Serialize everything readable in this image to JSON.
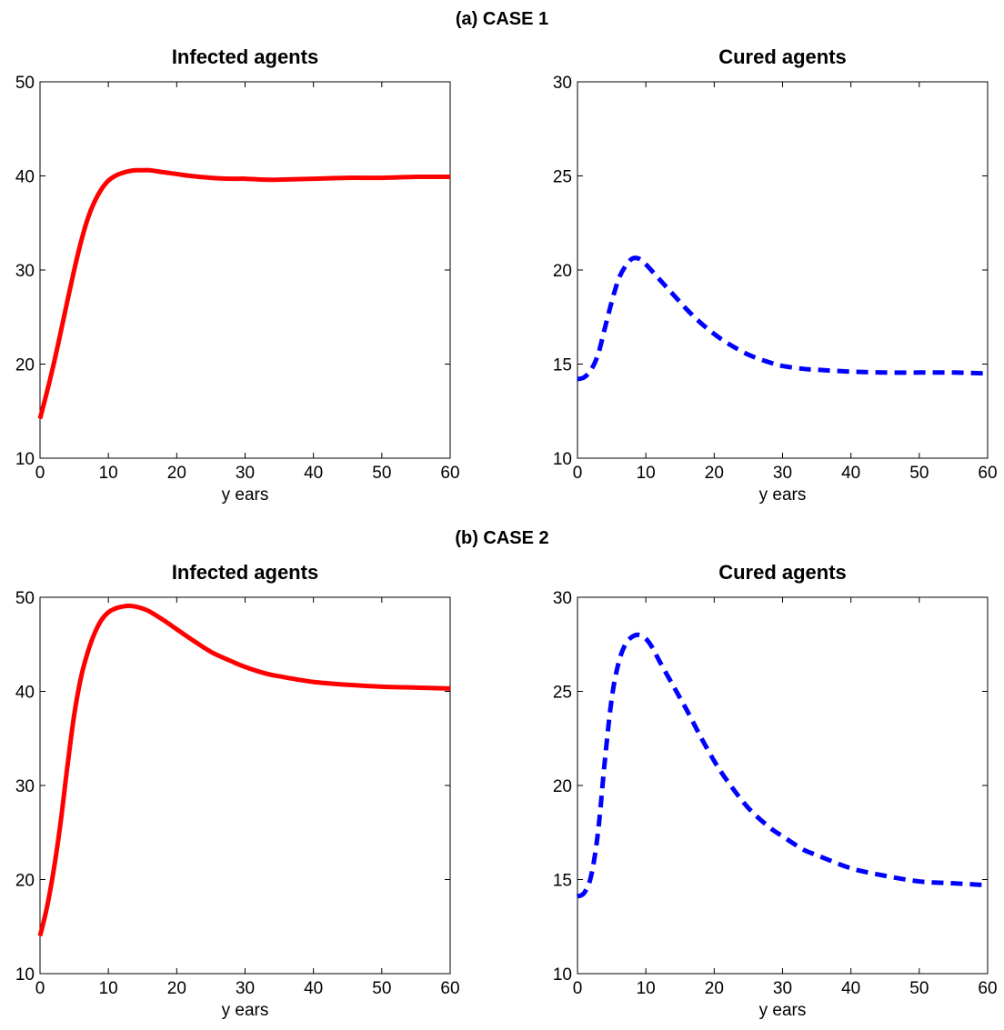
{
  "figure": {
    "case_titles": [
      "(a) CASE 1",
      "(b) CASE 2"
    ]
  },
  "chart_data": [
    {
      "type": "line",
      "case": "(a) CASE 1",
      "title": "Infected agents",
      "xlabel": "y ears",
      "ylabel": "",
      "xlim": [
        0,
        60
      ],
      "ylim": [
        10,
        50
      ],
      "xticks": [
        0,
        10,
        20,
        30,
        40,
        50,
        60
      ],
      "yticks": [
        10,
        20,
        30,
        40,
        50
      ],
      "grid": false,
      "series": [
        {
          "color": "#ff0000",
          "style": "solid",
          "x": [
            0,
            1,
            2,
            3,
            4,
            5,
            6,
            7,
            8,
            9,
            10,
            11,
            12,
            13,
            14,
            15,
            16,
            18,
            20,
            22,
            25,
            28,
            30,
            33,
            35,
            40,
            45,
            50,
            55,
            60
          ],
          "y": [
            14.2,
            17.0,
            20.0,
            23.3,
            26.7,
            30.0,
            33.0,
            35.5,
            37.3,
            38.6,
            39.5,
            40.0,
            40.3,
            40.5,
            40.6,
            40.6,
            40.6,
            40.4,
            40.2,
            40.0,
            39.8,
            39.7,
            39.7,
            39.6,
            39.6,
            39.7,
            39.8,
            39.8,
            39.9,
            39.9
          ]
        }
      ]
    },
    {
      "type": "line",
      "case": "(a) CASE 1",
      "title": "Cured agents",
      "xlabel": "y ears",
      "ylabel": "",
      "xlim": [
        0,
        60
      ],
      "ylim": [
        10,
        30
      ],
      "xticks": [
        0,
        10,
        20,
        30,
        40,
        50,
        60
      ],
      "yticks": [
        10,
        15,
        20,
        25,
        30
      ],
      "grid": false,
      "series": [
        {
          "color": "#0000ff",
          "style": "dashed",
          "x": [
            0,
            1,
            2,
            3,
            4,
            5,
            6,
            7,
            8,
            9,
            10,
            12,
            14,
            16,
            18,
            20,
            22,
            25,
            28,
            30,
            33,
            35,
            40,
            45,
            50,
            55,
            60
          ],
          "y": [
            14.2,
            14.3,
            14.7,
            15.5,
            16.9,
            18.3,
            19.5,
            20.2,
            20.6,
            20.6,
            20.3,
            19.5,
            18.7,
            17.9,
            17.2,
            16.6,
            16.1,
            15.5,
            15.1,
            14.9,
            14.75,
            14.7,
            14.6,
            14.55,
            14.55,
            14.55,
            14.5
          ]
        }
      ]
    },
    {
      "type": "line",
      "case": "(b) CASE 2",
      "title": "Infected agents",
      "xlabel": "y ears",
      "ylabel": "",
      "xlim": [
        0,
        60
      ],
      "ylim": [
        10,
        50
      ],
      "xticks": [
        0,
        10,
        20,
        30,
        40,
        50,
        60
      ],
      "yticks": [
        10,
        20,
        30,
        40,
        50
      ],
      "grid": false,
      "series": [
        {
          "color": "#ff0000",
          "style": "solid",
          "x": [
            0,
            1,
            2,
            3,
            4,
            5,
            6,
            7,
            8,
            9,
            10,
            11,
            12,
            13,
            14,
            15,
            16,
            18,
            20,
            22,
            25,
            28,
            30,
            33,
            35,
            40,
            45,
            50,
            55,
            60
          ],
          "y": [
            14.0,
            17.0,
            21.0,
            26.0,
            32.0,
            37.5,
            41.5,
            44.2,
            46.2,
            47.6,
            48.4,
            48.8,
            49.0,
            49.1,
            49.0,
            48.8,
            48.5,
            47.6,
            46.6,
            45.6,
            44.2,
            43.2,
            42.6,
            41.9,
            41.6,
            41.0,
            40.7,
            40.5,
            40.4,
            40.3
          ]
        }
      ]
    },
    {
      "type": "line",
      "case": "(b) CASE 2",
      "title": "Cured agents",
      "xlabel": "y ears",
      "ylabel": "",
      "xlim": [
        0,
        60
      ],
      "ylim": [
        10,
        30
      ],
      "xticks": [
        0,
        10,
        20,
        30,
        40,
        50,
        60
      ],
      "yticks": [
        10,
        15,
        20,
        25,
        30
      ],
      "grid": false,
      "series": [
        {
          "color": "#0000ff",
          "style": "dashed",
          "x": [
            0,
            1,
            2,
            3,
            4,
            5,
            6,
            7,
            8,
            9,
            10,
            11,
            12,
            14,
            16,
            18,
            20,
            22,
            25,
            28,
            30,
            33,
            35,
            40,
            45,
            50,
            55,
            60
          ],
          "y": [
            14.1,
            14.3,
            15.2,
            17.5,
            21.3,
            24.6,
            26.5,
            27.5,
            27.9,
            28.0,
            27.8,
            27.3,
            26.6,
            25.3,
            24.0,
            22.6,
            21.3,
            20.2,
            18.8,
            17.8,
            17.3,
            16.6,
            16.3,
            15.6,
            15.2,
            14.9,
            14.8,
            14.7
          ]
        }
      ]
    }
  ]
}
